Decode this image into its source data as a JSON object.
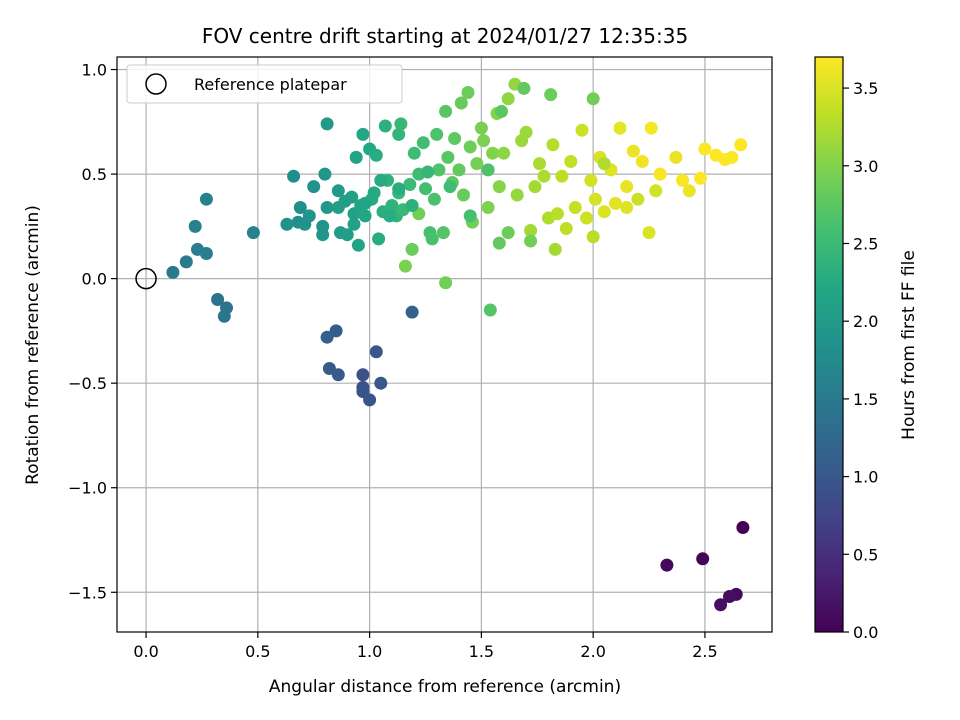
{
  "chart_data": {
    "type": "scatter",
    "title": "FOV centre drift starting at 2024/01/27 12:35:35",
    "xlabel": "Angular distance from reference (arcmin)",
    "ylabel": "Rotation from reference (arcmin)",
    "xlim": [
      -0.13,
      2.8
    ],
    "ylim": [
      -1.69,
      1.06
    ],
    "xticks": [
      0.0,
      0.5,
      1.0,
      1.5,
      2.0,
      2.5
    ],
    "xtick_labels": [
      "0.0",
      "0.5",
      "1.0",
      "1.5",
      "2.0",
      "2.5"
    ],
    "yticks": [
      -1.5,
      -1.0,
      -0.5,
      0.0,
      0.5,
      1.0
    ],
    "ytick_labels": [
      "−1.5",
      "−1.0",
      "−0.5",
      "0.0",
      "0.5",
      "1.0"
    ],
    "grid": true,
    "colorbar": {
      "label": "Hours from first FF file",
      "min": 0.0,
      "max": 3.7,
      "ticks": [
        0.0,
        0.5,
        1.0,
        1.5,
        2.0,
        2.5,
        3.0,
        3.5
      ],
      "tick_labels": [
        "0.0",
        "0.5",
        "1.0",
        "1.5",
        "2.0",
        "2.5",
        "3.0",
        "3.5"
      ],
      "colormap": "viridis"
    },
    "reference": {
      "name": "Reference platepar",
      "x": 0.0,
      "y": 0.0
    },
    "legend": {
      "location": "upper-left",
      "entries": [
        "Reference platepar"
      ]
    },
    "points": [
      [
        2.67,
        -1.19,
        0.02
      ],
      [
        2.49,
        -1.34,
        0.05
      ],
      [
        2.33,
        -1.37,
        0.07
      ],
      [
        2.64,
        -1.51,
        0.1
      ],
      [
        2.61,
        -1.52,
        0.12
      ],
      [
        2.57,
        -1.56,
        0.15
      ],
      [
        0.97,
        -0.46,
        0.9
      ],
      [
        0.97,
        -0.52,
        0.92
      ],
      [
        0.97,
        -0.54,
        0.95
      ],
      [
        1.0,
        -0.58,
        0.97
      ],
      [
        1.05,
        -0.5,
        1.0
      ],
      [
        1.03,
        -0.35,
        1.02
      ],
      [
        0.86,
        -0.46,
        1.05
      ],
      [
        0.82,
        -0.43,
        1.07
      ],
      [
        0.85,
        -0.25,
        1.1
      ],
      [
        0.81,
        -0.28,
        1.12
      ],
      [
        1.19,
        -0.16,
        1.15
      ],
      [
        0.32,
        -0.1,
        1.4
      ],
      [
        0.36,
        -0.14,
        1.42
      ],
      [
        0.35,
        -0.18,
        1.45
      ],
      [
        0.12,
        0.03,
        1.5
      ],
      [
        0.18,
        0.08,
        1.52
      ],
      [
        0.27,
        0.12,
        1.55
      ],
      [
        0.23,
        0.14,
        1.57
      ],
      [
        0.22,
        0.25,
        1.6
      ],
      [
        0.27,
        0.38,
        1.62
      ],
      [
        0.48,
        0.22,
        1.65
      ],
      [
        0.66,
        0.49,
        1.8
      ],
      [
        0.68,
        0.27,
        1.82
      ],
      [
        0.69,
        0.34,
        1.84
      ],
      [
        0.71,
        0.26,
        1.86
      ],
      [
        0.75,
        0.44,
        1.88
      ],
      [
        0.79,
        0.25,
        1.9
      ],
      [
        0.79,
        0.21,
        1.92
      ],
      [
        0.8,
        0.5,
        1.94
      ],
      [
        0.81,
        0.34,
        1.96
      ],
      [
        0.81,
        0.74,
        1.98
      ],
      [
        0.86,
        0.42,
        2.0
      ],
      [
        0.87,
        0.22,
        2.02
      ],
      [
        0.89,
        0.37,
        2.04
      ],
      [
        0.9,
        0.21,
        2.06
      ],
      [
        0.92,
        0.39,
        2.08
      ],
      [
        0.93,
        0.31,
        2.1
      ],
      [
        0.94,
        0.58,
        2.12
      ],
      [
        0.95,
        0.16,
        2.14
      ],
      [
        0.96,
        0.35,
        2.16
      ],
      [
        0.97,
        0.69,
        2.18
      ],
      [
        0.98,
        0.3,
        2.2
      ],
      [
        1.0,
        0.62,
        2.22
      ],
      [
        1.01,
        0.38,
        2.24
      ],
      [
        1.02,
        0.41,
        2.26
      ],
      [
        1.03,
        0.59,
        2.28
      ],
      [
        1.04,
        0.19,
        2.3
      ],
      [
        1.06,
        0.32,
        2.32
      ],
      [
        1.07,
        0.73,
        2.34
      ],
      [
        1.08,
        0.47,
        2.36
      ],
      [
        1.1,
        0.35,
        2.38
      ],
      [
        1.12,
        0.3,
        2.4
      ],
      [
        1.13,
        0.69,
        2.42
      ],
      [
        1.13,
        0.41,
        2.44
      ],
      [
        1.14,
        0.74,
        2.46
      ],
      [
        1.15,
        0.33,
        2.48
      ],
      [
        1.18,
        0.45,
        2.5
      ],
      [
        1.2,
        0.6,
        2.52
      ],
      [
        1.22,
        0.5,
        2.54
      ],
      [
        1.24,
        0.65,
        2.56
      ],
      [
        1.25,
        0.43,
        2.58
      ],
      [
        1.27,
        0.22,
        2.6
      ],
      [
        1.28,
        0.19,
        2.62
      ],
      [
        1.29,
        0.38,
        2.64
      ],
      [
        1.3,
        0.69,
        2.66
      ],
      [
        1.31,
        0.52,
        2.68
      ],
      [
        1.33,
        0.22,
        2.7
      ],
      [
        1.34,
        0.8,
        2.72
      ],
      [
        1.35,
        0.58,
        2.74
      ],
      [
        1.37,
        0.46,
        2.76
      ],
      [
        1.38,
        0.67,
        2.78
      ],
      [
        1.4,
        0.52,
        2.8
      ],
      [
        1.41,
        0.84,
        2.82
      ],
      [
        1.42,
        0.4,
        2.84
      ],
      [
        1.44,
        0.89,
        2.86
      ],
      [
        1.45,
        0.63,
        2.88
      ],
      [
        1.46,
        0.27,
        2.9
      ],
      [
        1.48,
        0.55,
        2.92
      ],
      [
        1.5,
        0.72,
        2.94
      ],
      [
        1.51,
        0.66,
        2.96
      ],
      [
        1.53,
        0.34,
        2.98
      ],
      [
        1.55,
        0.6,
        3.0
      ],
      [
        1.57,
        0.79,
        3.02
      ],
      [
        1.58,
        0.44,
        3.04
      ],
      [
        1.6,
        0.6,
        3.06
      ],
      [
        1.62,
        0.86,
        3.08
      ],
      [
        1.65,
        0.93,
        3.1
      ],
      [
        1.66,
        0.4,
        3.12
      ],
      [
        1.68,
        0.66,
        3.14
      ],
      [
        1.7,
        0.7,
        3.16
      ],
      [
        1.72,
        0.23,
        3.18
      ],
      [
        1.74,
        0.44,
        3.2
      ],
      [
        1.76,
        0.55,
        3.22
      ],
      [
        1.78,
        0.49,
        3.24
      ],
      [
        1.8,
        0.29,
        3.26
      ],
      [
        1.82,
        0.64,
        3.28
      ],
      [
        1.84,
        0.31,
        3.3
      ],
      [
        1.86,
        0.49,
        3.32
      ],
      [
        1.88,
        0.24,
        3.34
      ],
      [
        1.9,
        0.56,
        3.36
      ],
      [
        1.92,
        0.34,
        3.38
      ],
      [
        1.95,
        0.71,
        3.4
      ],
      [
        1.97,
        0.29,
        3.42
      ],
      [
        1.99,
        0.47,
        3.44
      ],
      [
        2.01,
        0.38,
        3.46
      ],
      [
        2.03,
        0.58,
        3.48
      ],
      [
        2.05,
        0.32,
        3.5
      ],
      [
        2.08,
        0.52,
        3.52
      ],
      [
        2.1,
        0.36,
        3.54
      ],
      [
        2.12,
        0.72,
        3.56
      ],
      [
        2.15,
        0.44,
        3.58
      ],
      [
        2.18,
        0.61,
        3.6
      ],
      [
        2.22,
        0.56,
        3.62
      ],
      [
        2.26,
        0.72,
        3.64
      ],
      [
        2.3,
        0.5,
        3.66
      ],
      [
        2.4,
        0.47,
        3.66
      ],
      [
        2.5,
        0.62,
        3.68
      ],
      [
        2.55,
        0.59,
        3.68
      ],
      [
        2.59,
        0.57,
        3.69
      ],
      [
        2.62,
        0.58,
        3.69
      ],
      [
        2.66,
        0.64,
        3.7
      ],
      [
        2.48,
        0.48,
        3.7
      ],
      [
        1.34,
        -0.02,
        2.9
      ],
      [
        1.16,
        0.06,
        2.95
      ],
      [
        1.54,
        -0.15,
        2.7
      ],
      [
        1.22,
        0.31,
        2.9
      ],
      [
        1.19,
        0.14,
        2.85
      ],
      [
        1.58,
        0.17,
        2.8
      ],
      [
        1.62,
        0.22,
        2.85
      ],
      [
        1.72,
        0.18,
        2.9
      ],
      [
        1.83,
        0.14,
        3.2
      ],
      [
        2.0,
        0.2,
        3.3
      ],
      [
        2.25,
        0.22,
        3.5
      ],
      [
        2.43,
        0.42,
        3.6
      ],
      [
        2.28,
        0.42,
        3.45
      ],
      [
        2.37,
        0.58,
        3.58
      ],
      [
        2.2,
        0.38,
        3.4
      ],
      [
        2.15,
        0.34,
        3.52
      ],
      [
        2.05,
        0.55,
        3.25
      ],
      [
        2.0,
        0.86,
        2.9
      ],
      [
        1.81,
        0.88,
        2.85
      ],
      [
        1.69,
        0.91,
        2.8
      ],
      [
        1.59,
        0.8,
        2.75
      ],
      [
        1.53,
        0.52,
        2.65
      ],
      [
        1.45,
        0.3,
        2.6
      ],
      [
        1.36,
        0.44,
        2.55
      ],
      [
        1.26,
        0.51,
        2.45
      ],
      [
        1.19,
        0.35,
        2.35
      ],
      [
        1.13,
        0.43,
        2.3
      ],
      [
        1.09,
        0.3,
        2.28
      ],
      [
        1.05,
        0.47,
        2.25
      ],
      [
        0.98,
        0.36,
        2.15
      ],
      [
        0.93,
        0.26,
        2.1
      ],
      [
        0.86,
        0.34,
        2.06
      ],
      [
        0.73,
        0.3,
        1.9
      ],
      [
        0.63,
        0.26,
        1.85
      ]
    ]
  }
}
